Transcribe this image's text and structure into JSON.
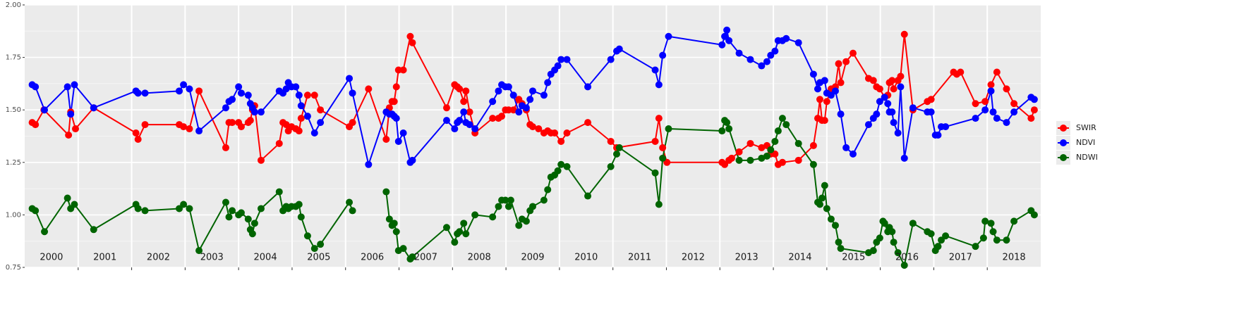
{
  "chart_data": {
    "type": "line",
    "markers": true,
    "ylim": [
      0.75,
      2.0
    ],
    "yticks": [
      0.75,
      {
        "value": 1.0,
        "label": "1.00"
      },
      1.25,
      {
        "value": 1.5,
        "label": "1.50"
      },
      1.75,
      {
        "value": 2.0,
        "label": "2.00"
      }
    ],
    "xlim": [
      2000,
      2019
    ],
    "x_gridlines": [
      2001,
      2002,
      2003,
      2004,
      2005,
      2006,
      2007,
      2008,
      2009,
      2010,
      2011,
      2012,
      2013,
      2014,
      2015,
      2016,
      2017,
      2018
    ],
    "year_labels": [
      {
        "value": 2000.5,
        "label": "2000"
      },
      {
        "value": 2001.5,
        "label": "2001"
      },
      {
        "value": 2002.5,
        "label": "2002"
      },
      {
        "value": 2003.5,
        "label": "2003"
      },
      {
        "value": 2004.5,
        "label": "2004"
      },
      {
        "value": 2005.5,
        "label": "2005"
      },
      {
        "value": 2006.5,
        "label": "2006"
      },
      {
        "value": 2007.5,
        "label": "2007"
      },
      {
        "value": 2008.5,
        "label": "2008"
      },
      {
        "value": 2009.5,
        "label": "2009"
      },
      {
        "value": 2010.5,
        "label": "2010"
      },
      {
        "value": 2011.5,
        "label": "2011"
      },
      {
        "value": 2012.5,
        "label": "2012"
      },
      {
        "value": 2013.5,
        "label": "2013"
      },
      {
        "value": 2014.5,
        "label": "2014"
      },
      {
        "value": 2015.5,
        "label": "2015"
      },
      {
        "value": 2016.5,
        "label": "2016"
      },
      {
        "value": 2017.5,
        "label": "2017"
      },
      {
        "value": 2018.5,
        "label": "2018"
      }
    ],
    "grid": true,
    "legend": "right",
    "series": [
      {
        "name": "SWIR",
        "color": "#ff0000",
        "x": [
          2000.14,
          2000.2,
          2000.36,
          2000.82,
          2000.86,
          2000.95,
          2001.29,
          2002.08,
          2002.12,
          2002.25,
          2002.89,
          2002.97,
          2003.08,
          2003.26,
          2003.76,
          2003.82,
          2003.88,
          2004.0,
          2004.05,
          2004.18,
          2004.22,
          2004.26,
          2004.3,
          2004.42,
          2004.76,
          2004.83,
          2004.89,
          2004.93,
          2004.99,
          2005.07,
          2005.13,
          2005.17,
          2005.29,
          2005.42,
          2005.53,
          2006.07,
          2006.13,
          2006.43,
          2006.76,
          2006.82,
          2006.87,
          2006.91,
          2006.95,
          2006.99,
          2007.08,
          2007.21,
          2007.25,
          2007.89,
          2008.04,
          2008.09,
          2008.13,
          2008.21,
          2008.25,
          2008.32,
          2008.42,
          2008.75,
          2008.86,
          2008.92,
          2008.99,
          2009.05,
          2009.14,
          2009.24,
          2009.3,
          2009.38,
          2009.45,
          2009.5,
          2009.61,
          2009.71,
          2009.78,
          2009.84,
          2009.91,
          2010.03,
          2010.14,
          2010.53,
          2010.96,
          2011.07,
          2011.79,
          2011.86,
          2011.93,
          2012.01,
          2013.04,
          2013.09,
          2013.17,
          2013.22,
          2013.36,
          2013.57,
          2013.78,
          2013.88,
          2013.95,
          2014.03,
          2014.09,
          2014.17,
          2014.47,
          2014.75,
          2014.83,
          2014.87,
          2014.91,
          2014.96,
          2015.0,
          2015.08,
          2015.16,
          2015.22,
          2015.26,
          2015.36,
          2015.49,
          2015.78,
          2015.87,
          2015.93,
          2015.99,
          2016.08,
          2016.14,
          2016.17,
          2016.22,
          2016.25,
          2016.33,
          2016.38,
          2016.45,
          2016.61,
          2016.88,
          2016.95,
          2017.37,
          2017.43,
          2017.5,
          2017.78,
          2017.96,
          2018.07,
          2018.18,
          2018.36,
          2018.5,
          2018.82,
          2018.88
        ],
        "values": [
          1.44,
          1.43,
          1.5,
          1.38,
          1.49,
          1.41,
          1.51,
          1.39,
          1.36,
          1.43,
          1.43,
          1.42,
          1.41,
          1.59,
          1.32,
          1.44,
          1.44,
          1.44,
          1.42,
          1.44,
          1.45,
          1.5,
          1.52,
          1.26,
          1.34,
          1.44,
          1.43,
          1.4,
          1.42,
          1.41,
          1.4,
          1.46,
          1.57,
          1.57,
          1.5,
          1.42,
          1.44,
          1.6,
          1.36,
          1.51,
          1.54,
          1.54,
          1.61,
          1.69,
          1.69,
          1.85,
          1.82,
          1.51,
          1.62,
          1.61,
          1.6,
          1.54,
          1.59,
          1.49,
          1.39,
          1.46,
          1.46,
          1.47,
          1.5,
          1.5,
          1.5,
          1.55,
          1.53,
          1.5,
          1.43,
          1.42,
          1.41,
          1.39,
          1.4,
          1.39,
          1.39,
          1.35,
          1.39,
          1.44,
          1.35,
          1.32,
          1.35,
          1.46,
          1.32,
          1.25,
          1.25,
          1.24,
          1.26,
          1.27,
          1.3,
          1.34,
          1.32,
          1.33,
          1.29,
          1.29,
          1.24,
          1.25,
          1.26,
          1.33,
          1.46,
          1.55,
          1.45,
          1.45,
          1.54,
          1.6,
          1.61,
          1.72,
          1.63,
          1.73,
          1.77,
          1.65,
          1.64,
          1.61,
          1.6,
          1.56,
          1.57,
          1.63,
          1.64,
          1.6,
          1.64,
          1.66,
          1.86,
          1.5,
          1.54,
          1.55,
          1.68,
          1.67,
          1.68,
          1.53,
          1.54,
          1.62,
          1.68,
          1.6,
          1.53,
          1.46,
          1.5
        ]
      },
      {
        "name": "NDVI",
        "color": "#0000ff",
        "x": [
          2000.14,
          2000.2,
          2000.37,
          2000.8,
          2000.86,
          2000.93,
          2001.29,
          2002.08,
          2002.12,
          2002.25,
          2002.89,
          2002.97,
          2003.08,
          2003.26,
          2003.76,
          2003.82,
          2003.88,
          2004.0,
          2004.05,
          2004.18,
          2004.22,
          2004.26,
          2004.3,
          2004.42,
          2004.76,
          2004.83,
          2004.89,
          2004.93,
          2004.99,
          2005.07,
          2005.13,
          2005.17,
          2005.29,
          2005.42,
          2005.53,
          2006.07,
          2006.13,
          2006.43,
          2006.76,
          2006.82,
          2006.87,
          2006.91,
          2006.95,
          2006.99,
          2007.08,
          2007.21,
          2007.25,
          2007.89,
          2008.04,
          2008.09,
          2008.13,
          2008.21,
          2008.25,
          2008.32,
          2008.42,
          2008.75,
          2008.86,
          2008.92,
          2008.99,
          2009.05,
          2009.14,
          2009.24,
          2009.3,
          2009.38,
          2009.45,
          2009.5,
          2009.71,
          2009.78,
          2009.84,
          2009.91,
          2009.97,
          2010.03,
          2010.14,
          2010.53,
          2010.96,
          2011.07,
          2011.12,
          2011.79,
          2011.86,
          2011.93,
          2012.04,
          2013.04,
          2013.09,
          2013.13,
          2013.17,
          2013.36,
          2013.57,
          2013.78,
          2013.88,
          2013.95,
          2014.03,
          2014.09,
          2014.17,
          2014.24,
          2014.47,
          2014.75,
          2014.83,
          2014.87,
          2014.96,
          2015.0,
          2015.08,
          2015.16,
          2015.26,
          2015.36,
          2015.49,
          2015.78,
          2015.87,
          2015.93,
          2015.99,
          2016.08,
          2016.14,
          2016.17,
          2016.22,
          2016.25,
          2016.33,
          2016.38,
          2016.45,
          2016.61,
          2016.88,
          2016.95,
          2017.03,
          2017.08,
          2017.14,
          2017.22,
          2017.78,
          2017.96,
          2018.07,
          2018.11,
          2018.18,
          2018.36,
          2018.5,
          2018.82,
          2018.88
        ],
        "values": [
          1.62,
          1.61,
          1.5,
          1.61,
          1.48,
          1.62,
          1.51,
          1.59,
          1.58,
          1.58,
          1.59,
          1.62,
          1.6,
          1.4,
          1.51,
          1.54,
          1.55,
          1.61,
          1.58,
          1.57,
          1.53,
          1.51,
          1.49,
          1.49,
          1.59,
          1.58,
          1.6,
          1.63,
          1.61,
          1.61,
          1.57,
          1.52,
          1.47,
          1.39,
          1.44,
          1.65,
          1.58,
          1.24,
          1.49,
          1.48,
          1.48,
          1.47,
          1.46,
          1.35,
          1.39,
          1.25,
          1.26,
          1.45,
          1.41,
          1.44,
          1.45,
          1.49,
          1.44,
          1.43,
          1.41,
          1.54,
          1.59,
          1.62,
          1.61,
          1.61,
          1.57,
          1.49,
          1.52,
          1.51,
          1.55,
          1.59,
          1.57,
          1.63,
          1.67,
          1.69,
          1.71,
          1.74,
          1.74,
          1.61,
          1.74,
          1.78,
          1.79,
          1.69,
          1.62,
          1.76,
          1.85,
          1.81,
          1.85,
          1.88,
          1.83,
          1.77,
          1.74,
          1.71,
          1.73,
          1.76,
          1.78,
          1.83,
          1.83,
          1.84,
          1.82,
          1.67,
          1.6,
          1.63,
          1.64,
          1.58,
          1.57,
          1.59,
          1.48,
          1.32,
          1.29,
          1.43,
          1.46,
          1.48,
          1.54,
          1.56,
          1.53,
          1.49,
          1.49,
          1.44,
          1.39,
          1.61,
          1.27,
          1.51,
          1.49,
          1.49,
          1.38,
          1.38,
          1.42,
          1.42,
          1.46,
          1.5,
          1.59,
          1.49,
          1.46,
          1.44,
          1.49,
          1.56,
          1.55
        ]
      },
      {
        "name": "NDWI",
        "color": "#006400",
        "x": [
          2000.14,
          2000.2,
          2000.37,
          2000.8,
          2000.86,
          2000.93,
          2001.29,
          2002.08,
          2002.12,
          2002.25,
          2002.89,
          2002.97,
          2003.08,
          2003.26,
          2003.76,
          2003.82,
          2003.88,
          2004.0,
          2004.05,
          2004.18,
          2004.22,
          2004.26,
          2004.3,
          2004.42,
          2004.76,
          2004.83,
          2004.89,
          2004.93,
          2004.99,
          2005.07,
          2005.13,
          2005.17,
          2005.29,
          2005.42,
          2005.53,
          2006.07,
          2006.13,
          2006.43,
          2006.76,
          2006.82,
          2006.87,
          2006.91,
          2006.95,
          2006.99,
          2007.08,
          2007.21,
          2007.25,
          2007.89,
          2008.04,
          2008.09,
          2008.13,
          2008.21,
          2008.25,
          2008.42,
          2008.75,
          2008.86,
          2008.92,
          2008.99,
          2009.05,
          2009.09,
          2009.24,
          2009.3,
          2009.38,
          2009.45,
          2009.5,
          2009.71,
          2009.78,
          2009.84,
          2009.91,
          2009.97,
          2010.03,
          2010.14,
          2010.53,
          2010.96,
          2011.07,
          2011.12,
          2011.79,
          2011.86,
          2011.93,
          2012.04,
          2013.04,
          2013.09,
          2013.13,
          2013.17,
          2013.36,
          2013.57,
          2013.78,
          2013.88,
          2013.95,
          2014.03,
          2014.09,
          2014.17,
          2014.24,
          2014.47,
          2014.75,
          2014.83,
          2014.87,
          2014.91,
          2014.96,
          2015.0,
          2015.08,
          2015.16,
          2015.22,
          2015.26,
          2015.78,
          2015.87,
          2015.93,
          2015.99,
          2016.05,
          2016.08,
          2016.14,
          2016.17,
          2016.22,
          2016.25,
          2016.33,
          2016.45,
          2016.61,
          2016.88,
          2016.95,
          2017.03,
          2017.08,
          2017.14,
          2017.22,
          2017.78,
          2017.93,
          2017.96,
          2018.07,
          2018.11,
          2018.18,
          2018.36,
          2018.5,
          2018.82,
          2018.88
        ],
        "values": [
          1.03,
          1.02,
          0.92,
          1.08,
          1.03,
          1.05,
          0.93,
          1.05,
          1.03,
          1.02,
          1.03,
          1.05,
          1.03,
          0.83,
          1.06,
          0.99,
          1.02,
          1.0,
          1.01,
          0.98,
          0.93,
          0.91,
          0.96,
          1.03,
          1.11,
          1.02,
          1.04,
          1.03,
          1.04,
          1.04,
          1.05,
          0.99,
          0.9,
          0.84,
          0.86,
          1.06,
          1.02,
          null,
          1.11,
          0.98,
          0.95,
          0.96,
          0.92,
          0.83,
          0.84,
          0.79,
          0.8,
          0.94,
          0.87,
          0.91,
          0.92,
          0.96,
          0.91,
          1.0,
          0.99,
          1.04,
          1.07,
          1.07,
          1.04,
          1.07,
          0.95,
          0.98,
          0.97,
          1.02,
          1.04,
          1.07,
          1.12,
          1.18,
          1.19,
          1.21,
          1.24,
          1.23,
          1.09,
          1.23,
          1.29,
          1.32,
          1.2,
          1.05,
          1.27,
          1.41,
          1.4,
          1.45,
          1.44,
          1.41,
          1.26,
          1.26,
          1.27,
          1.28,
          1.31,
          1.35,
          1.4,
          1.46,
          1.43,
          1.34,
          1.24,
          1.06,
          1.05,
          1.08,
          1.14,
          1.03,
          0.98,
          0.95,
          0.87,
          0.84,
          0.82,
          0.83,
          0.87,
          0.89,
          0.97,
          0.96,
          0.92,
          0.94,
          0.92,
          0.87,
          0.82,
          0.76,
          0.96,
          0.92,
          0.91,
          0.83,
          0.85,
          0.88,
          0.9,
          0.85,
          0.89,
          0.97,
          0.96,
          0.92,
          0.88,
          0.88,
          0.97,
          1.02,
          1.0
        ]
      }
    ]
  }
}
